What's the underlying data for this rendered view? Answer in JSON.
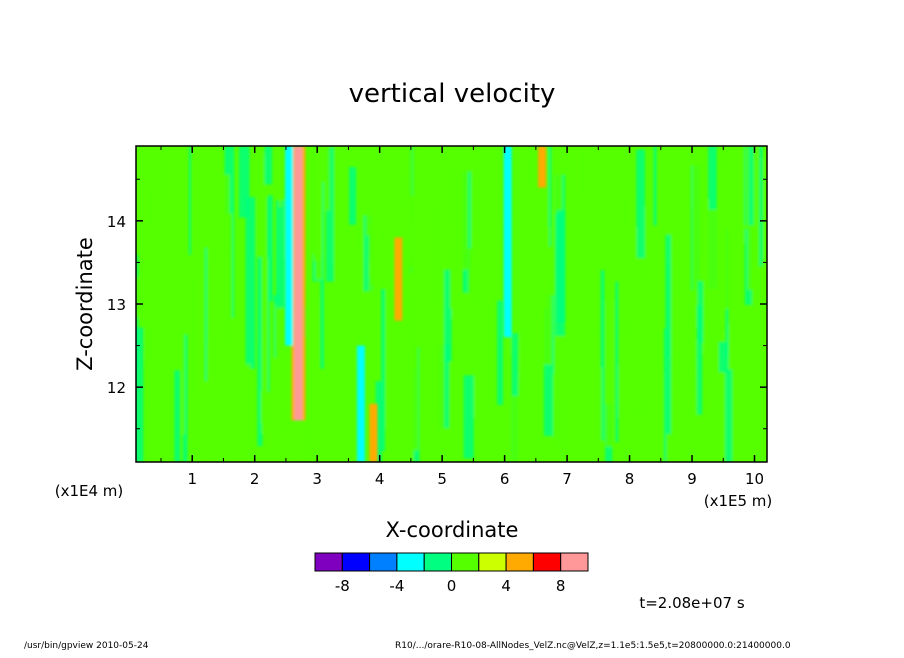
{
  "chart_data": {
    "type": "heatmap",
    "title": "vertical velocity",
    "xlabel": "X-coordinate",
    "ylabel": "Z-coordinate",
    "x_scale_note": "(x1E5 m)",
    "y_scale_note": "(x1E4 m)",
    "xlim": [
      0.1,
      10.2
    ],
    "ylim": [
      11.1,
      14.9
    ],
    "x_ticks": [
      "1",
      "2",
      "3",
      "4",
      "5",
      "6",
      "7",
      "8",
      "9",
      "10"
    ],
    "y_ticks": [
      "12",
      "13",
      "14"
    ],
    "colorbar": {
      "colors": [
        "#8000c0",
        "#0000ff",
        "#0080ff",
        "#00ffff",
        "#00ff80",
        "#55ff00",
        "#ccff00",
        "#ffaa00",
        "#ff0000",
        "#ff9999"
      ],
      "tick_labels": [
        "-8",
        "-4",
        "0",
        "4",
        "8"
      ]
    },
    "dominant_level": "0",
    "features": [
      {
        "x": 2.7,
        "z_range": [
          11.6,
          14.9
        ],
        "level": "8"
      },
      {
        "x": 2.55,
        "z_range": [
          12.5,
          14.9
        ],
        "level": "-4"
      },
      {
        "x": 3.7,
        "z_range": [
          11.1,
          12.5
        ],
        "level": "-4"
      },
      {
        "x": 3.9,
        "z_range": [
          11.1,
          11.8
        ],
        "level": "4"
      },
      {
        "x": 4.3,
        "z_range": [
          12.8,
          13.8
        ],
        "level": "4"
      },
      {
        "x": 6.05,
        "z_range": [
          12.6,
          14.9
        ],
        "level": "-4"
      },
      {
        "x": 6.6,
        "z_range": [
          14.4,
          14.9
        ],
        "level": "4"
      }
    ]
  },
  "time_label": "t=2.08e+07 s",
  "footer": {
    "left": "/usr/bin/gpview   2010-05-24",
    "right": "R10/.../orare-R10-08-AllNodes_VelZ.nc@VelZ,z=1.1e5:1.5e5,t=20800000.0:21400000.0"
  }
}
